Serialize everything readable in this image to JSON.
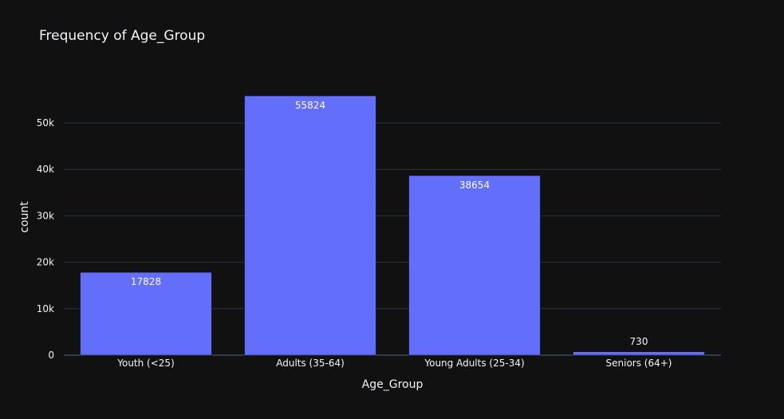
{
  "chart_data": {
    "type": "bar",
    "title": "Frequency of Age_Group",
    "xlabel": "Age_Group",
    "ylabel": "count",
    "categories": [
      "Youth (<25)",
      "Adults (35-64)",
      "Young Adults (25-34)",
      "Seniors (64+)"
    ],
    "values": [
      17828,
      55824,
      38654,
      730
    ],
    "ylim": [
      0,
      58762
    ],
    "yticks": [
      0,
      10000,
      20000,
      30000,
      40000,
      50000
    ],
    "ytick_labels": [
      "0",
      "10k",
      "20k",
      "30k",
      "40k",
      "50k"
    ],
    "grid": true,
    "bar_color": "#636efa",
    "background": "#111111",
    "grid_color": "#283442",
    "text_color": "#f2f5fa"
  }
}
